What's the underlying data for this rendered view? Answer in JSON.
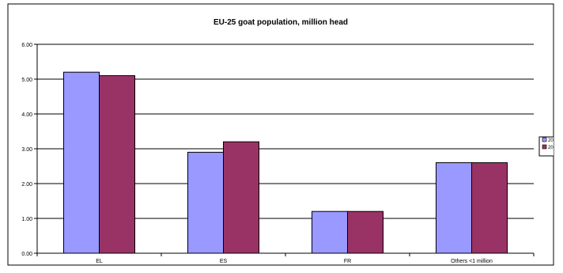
{
  "chart_data": {
    "type": "bar",
    "title": "EU-25 goat population, million head",
    "xlabel": "",
    "ylabel": "",
    "categories": [
      "EL",
      "ES",
      "FR",
      "Others <1 million"
    ],
    "series": [
      {
        "name": "2004",
        "values": [
          5.2,
          2.9,
          1.2,
          2.6
        ]
      },
      {
        "name": "2003",
        "values": [
          5.1,
          3.2,
          1.2,
          2.6
        ]
      }
    ],
    "ylim": [
      0,
      6
    ],
    "yticks": [
      0,
      1,
      2,
      3,
      4,
      5,
      6
    ],
    "ytick_labels": [
      "0.00",
      "1.00",
      "2.00",
      "3.00",
      "4.00",
      "5.00",
      "6.00"
    ],
    "grid": true,
    "legend_position": "right",
    "colors": {
      "series": [
        "#9999ff",
        "#993366"
      ],
      "plot_background": "#ffffff",
      "gridline": "#000000",
      "frame": "#000000"
    }
  }
}
